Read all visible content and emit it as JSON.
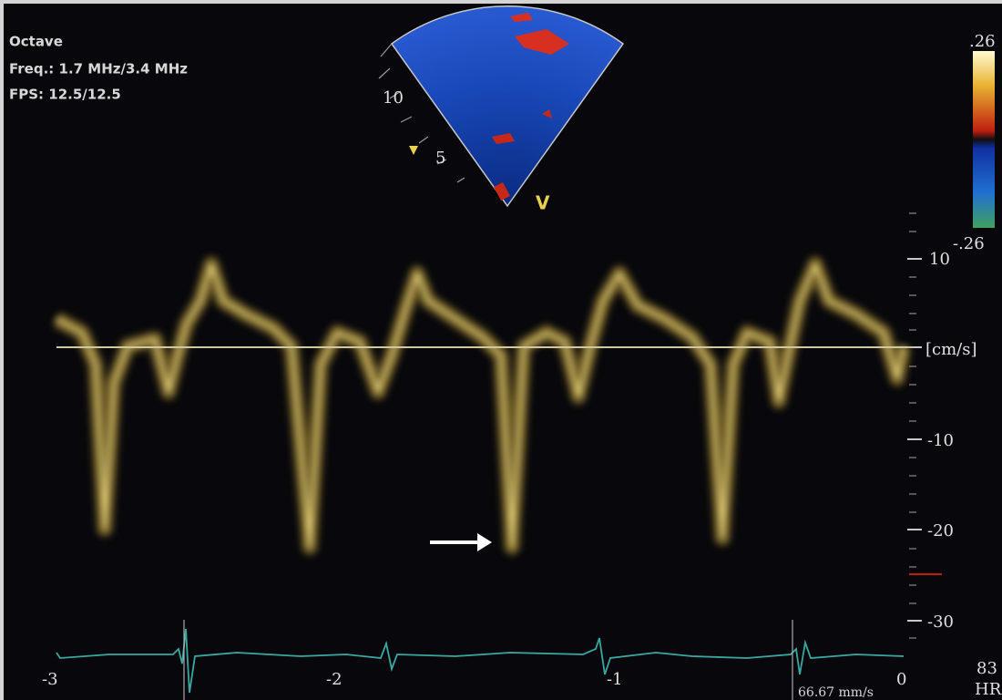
{
  "header": {
    "preset": "Octave",
    "frequency": "Freq.: 1.7 MHz/3.4 MHz",
    "fps": "FPS: 12.5/12.5"
  },
  "color_scale": {
    "max": ".26",
    "min": "-.26"
  },
  "sector": {
    "depth_labels": [
      "10",
      "5"
    ],
    "marker": "V"
  },
  "velocity_axis": {
    "ticks": [
      "10",
      "-10",
      "-20",
      "-30"
    ],
    "unit": "[cm/s]"
  },
  "time_axis": {
    "ticks": [
      "-3",
      "-2",
      "-1",
      "0"
    ],
    "sweep_speed": "66.67 mm/s"
  },
  "heart_rate": {
    "value": "83",
    "label": "HR"
  }
}
